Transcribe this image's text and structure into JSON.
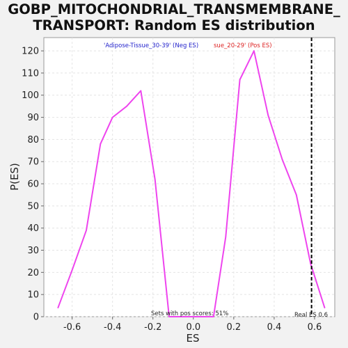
{
  "chart_data": {
    "type": "line",
    "title_line1": "GOBP_MITOCHONDRIAL_TRANSMEMBRANE_",
    "title_line2": "TRANSPORT: Random ES distribution",
    "xlabel": "ES",
    "ylabel": "P(ES)",
    "xlim": [
      -0.74,
      0.7
    ],
    "ylim": [
      0,
      126
    ],
    "xticks": [
      -0.6,
      -0.4,
      -0.2,
      0.0,
      0.2,
      0.4,
      0.6
    ],
    "xtick_labels": [
      "-0.6",
      "-0.4",
      "-0.2",
      "0.0",
      "0.2",
      "0.4",
      "0.6"
    ],
    "yticks": [
      0,
      10,
      20,
      30,
      40,
      50,
      60,
      70,
      80,
      90,
      100,
      110,
      120
    ],
    "ytick_labels": [
      "0",
      "10",
      "20",
      "30",
      "40",
      "50",
      "60",
      "70",
      "80",
      "90",
      "100",
      "110",
      "120"
    ],
    "grid": true,
    "series": [
      {
        "color": "#ee44ee",
        "x": [
          -0.67,
          -0.6,
          -0.53,
          -0.46,
          -0.4,
          -0.33,
          -0.26,
          -0.19,
          -0.12,
          -0.05,
          0.02,
          0.1,
          0.16,
          0.23,
          0.3,
          0.37,
          0.44,
          0.51,
          0.58,
          0.65
        ],
        "y": [
          4,
          21,
          39,
          78,
          90,
          95,
          102,
          62,
          0,
          0,
          0,
          0,
          36,
          107,
          120,
          91,
          71,
          55,
          24,
          4
        ]
      }
    ],
    "real_es": 0.585,
    "real_es_color": "#000000",
    "annotations": {
      "neg_label": "'Adipose-Tissue_30-39' (Neg ES)",
      "neg_color": "#2222cc",
      "pos_label": "sue_20-29' (Pos ES)",
      "pos_color": "#dd2222",
      "pos_scores": "Sets with pos scores: 51%",
      "real_es_label": "Real ES 0.6"
    }
  }
}
